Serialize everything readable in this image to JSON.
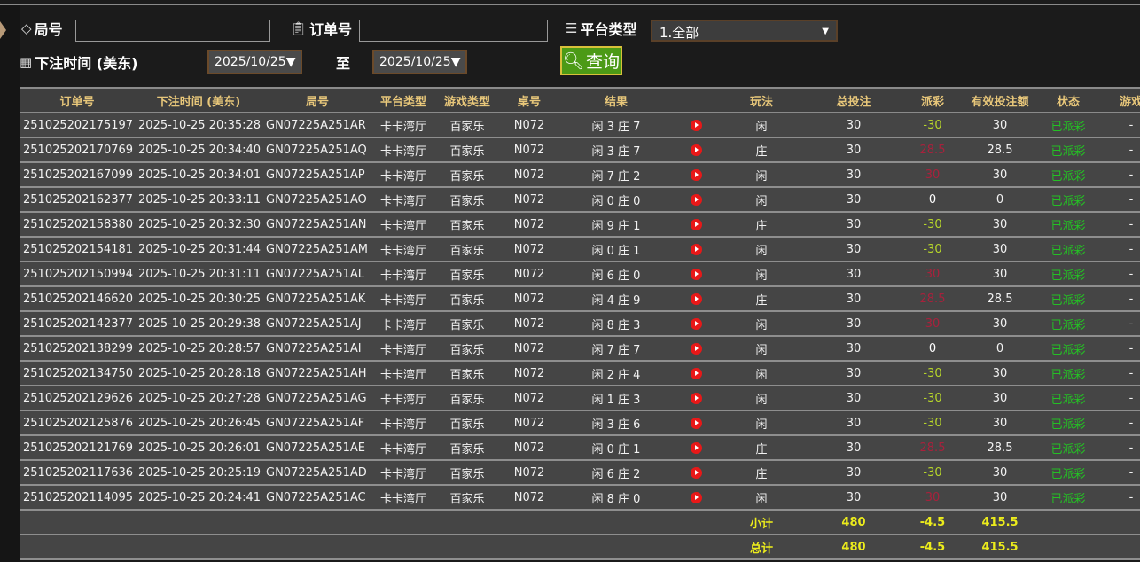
{
  "filters": {
    "round_label": "局号",
    "round_value": "",
    "order_label": "订单号",
    "order_value": "",
    "platform_label": "平台类型",
    "platform_value": "1.全部",
    "time_label": "下注时间 (美东)",
    "date_from": "2025/10/25▼",
    "to_label": "至",
    "date_to": "2025/10/25▼",
    "query_label": "查询"
  },
  "table": {
    "headers": [
      "订单号",
      "下注时间 (美东)",
      "局号",
      "平台类型",
      "游戏类型",
      "桌号",
      "结果",
      "",
      "玩法",
      "总投注",
      "派彩",
      "有效投注额",
      "状态",
      "游戏"
    ],
    "rows": [
      [
        "251025202175197",
        "2025-10-25 20:35:28",
        "GN07225A251AR",
        "卡卡湾厅",
        "百家乐",
        "N072",
        "闲 3 庄 7",
        "闲",
        "30",
        "-30",
        "30",
        "已派彩",
        "-"
      ],
      [
        "251025202170769",
        "2025-10-25 20:34:40",
        "GN07225A251AQ",
        "卡卡湾厅",
        "百家乐",
        "N072",
        "闲 3 庄 7",
        "庄",
        "30",
        "28.5",
        "28.5",
        "已派彩",
        "-"
      ],
      [
        "251025202167099",
        "2025-10-25 20:34:01",
        "GN07225A251AP",
        "卡卡湾厅",
        "百家乐",
        "N072",
        "闲 7 庄 2",
        "闲",
        "30",
        "30",
        "30",
        "已派彩",
        "-"
      ],
      [
        "251025202162377",
        "2025-10-25 20:33:11",
        "GN07225A251AO",
        "卡卡湾厅",
        "百家乐",
        "N072",
        "闲 0 庄 0",
        "闲",
        "30",
        "0",
        "0",
        "已派彩",
        "-"
      ],
      [
        "251025202158380",
        "2025-10-25 20:32:30",
        "GN07225A251AN",
        "卡卡湾厅",
        "百家乐",
        "N072",
        "闲 9 庄 1",
        "庄",
        "30",
        "-30",
        "30",
        "已派彩",
        "-"
      ],
      [
        "251025202154181",
        "2025-10-25 20:31:44",
        "GN07225A251AM",
        "卡卡湾厅",
        "百家乐",
        "N072",
        "闲 0 庄 1",
        "闲",
        "30",
        "-30",
        "30",
        "已派彩",
        "-"
      ],
      [
        "251025202150994",
        "2025-10-25 20:31:11",
        "GN07225A251AL",
        "卡卡湾厅",
        "百家乐",
        "N072",
        "闲 6 庄 0",
        "闲",
        "30",
        "30",
        "30",
        "已派彩",
        "-"
      ],
      [
        "251025202146620",
        "2025-10-25 20:30:25",
        "GN07225A251AK",
        "卡卡湾厅",
        "百家乐",
        "N072",
        "闲 4 庄 9",
        "庄",
        "30",
        "28.5",
        "28.5",
        "已派彩",
        "-"
      ],
      [
        "251025202142377",
        "2025-10-25 20:29:38",
        "GN07225A251AJ",
        "卡卡湾厅",
        "百家乐",
        "N072",
        "闲 8 庄 3",
        "闲",
        "30",
        "30",
        "30",
        "已派彩",
        "-"
      ],
      [
        "251025202138299",
        "2025-10-25 20:28:57",
        "GN07225A251AI",
        "卡卡湾厅",
        "百家乐",
        "N072",
        "闲 7 庄 7",
        "闲",
        "30",
        "0",
        "0",
        "已派彩",
        "-"
      ],
      [
        "251025202134750",
        "2025-10-25 20:28:18",
        "GN07225A251AH",
        "卡卡湾厅",
        "百家乐",
        "N072",
        "闲 2 庄 4",
        "闲",
        "30",
        "-30",
        "30",
        "已派彩",
        "-"
      ],
      [
        "251025202129626",
        "2025-10-25 20:27:28",
        "GN07225A251AG",
        "卡卡湾厅",
        "百家乐",
        "N072",
        "闲 1 庄 3",
        "闲",
        "30",
        "-30",
        "30",
        "已派彩",
        "-"
      ],
      [
        "251025202125876",
        "2025-10-25 20:26:45",
        "GN07225A251AF",
        "卡卡湾厅",
        "百家乐",
        "N072",
        "闲 3 庄 6",
        "闲",
        "30",
        "-30",
        "30",
        "已派彩",
        "-"
      ],
      [
        "251025202121769",
        "2025-10-25 20:26:01",
        "GN07225A251AE",
        "卡卡湾厅",
        "百家乐",
        "N072",
        "闲 0 庄 1",
        "庄",
        "30",
        "28.5",
        "28.5",
        "已派彩",
        "-"
      ],
      [
        "251025202117636",
        "2025-10-25 20:25:19",
        "GN07225A251AD",
        "卡卡湾厅",
        "百家乐",
        "N072",
        "闲 6 庄 2",
        "庄",
        "30",
        "-30",
        "30",
        "已派彩",
        "-"
      ],
      [
        "251025202114095",
        "2025-10-25 20:24:41",
        "GN07225A251AC",
        "卡卡湾厅",
        "百家乐",
        "N072",
        "闲 8 庄 0",
        "闲",
        "30",
        "30",
        "30",
        "已派彩",
        "-"
      ]
    ],
    "subtotal": {
      "label": "小计",
      "bet": "480",
      "payout": "-4.5",
      "valid": "415.5"
    },
    "total": {
      "label": "总计",
      "bet": "480",
      "payout": "-4.5",
      "valid": "415.5"
    }
  },
  "colors": {
    "header_text": "#e8c77a",
    "payout_negative": "#b7d62a",
    "payout_positive": "#a8213c",
    "status": "#24c024",
    "totals": "#ecec1c",
    "button": "#4c9a16"
  }
}
